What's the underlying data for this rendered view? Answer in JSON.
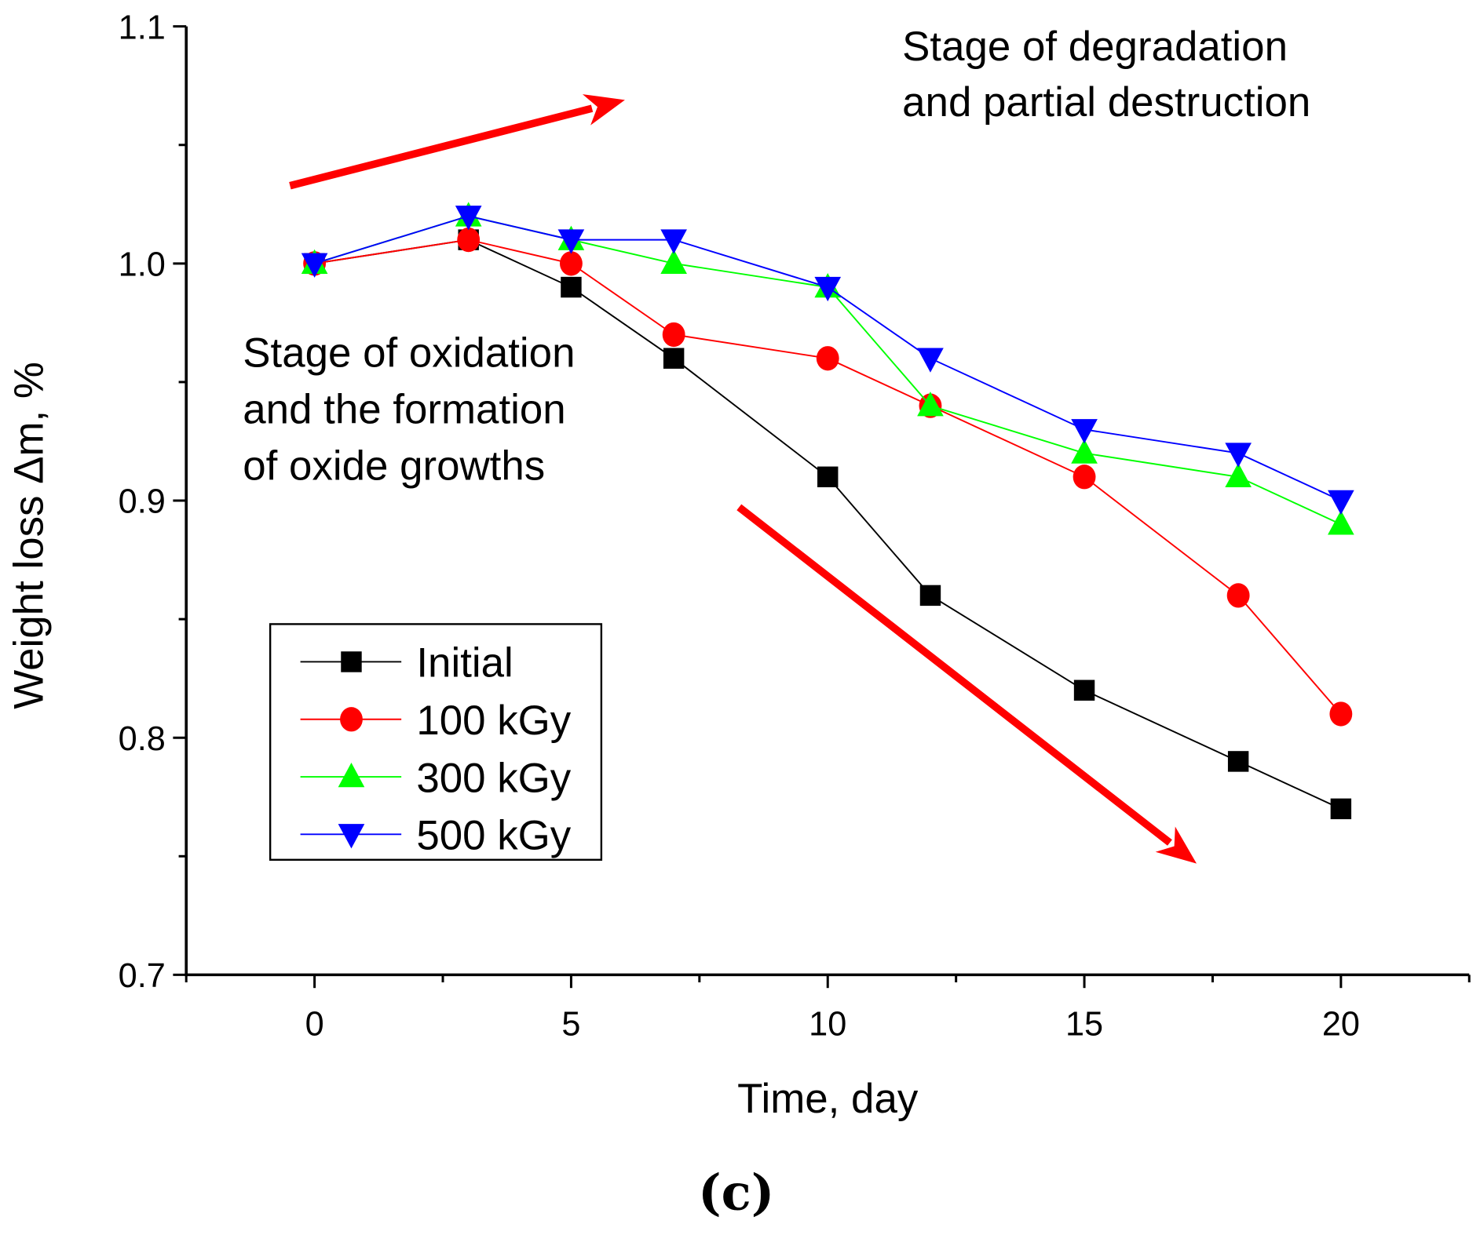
{
  "chart_data": {
    "type": "line",
    "xlabel": "Time, day",
    "ylabel": "Weight loss Δm, %",
    "xlim": [
      -2.5,
      22.5
    ],
    "ylim": [
      0.7,
      1.1
    ],
    "xticks": [
      0,
      5,
      10,
      15,
      20
    ],
    "xtick_labels": [
      "0",
      "5",
      "10",
      "15",
      "20"
    ],
    "yticks": [
      0.7,
      0.8,
      0.9,
      1.0,
      1.1
    ],
    "ytick_labels": [
      "0.7",
      "0.8",
      "0.9",
      "1.0",
      "1.1"
    ],
    "grid": false,
    "legend_position": "lower-left",
    "x": [
      0,
      3,
      5,
      7,
      10,
      12,
      15,
      18,
      20
    ],
    "series": [
      {
        "name": "Initial",
        "color": "#000000",
        "marker": "square",
        "values": [
          1.0,
          1.01,
          0.99,
          0.96,
          0.91,
          0.86,
          0.82,
          0.79,
          0.77
        ]
      },
      {
        "name": "100 kGy",
        "color": "#ff0000",
        "marker": "circle",
        "values": [
          1.0,
          1.01,
          1.0,
          0.97,
          0.96,
          0.94,
          0.91,
          0.86,
          0.81
        ]
      },
      {
        "name": "300 kGy",
        "color": "#00ff00",
        "marker": "triangle-up",
        "values": [
          1.0,
          1.02,
          1.01,
          1.0,
          0.99,
          0.94,
          0.92,
          0.91,
          0.89
        ]
      },
      {
        "name": "500 kGy",
        "color": "#0000ff",
        "marker": "triangle-down",
        "values": [
          1.0,
          1.02,
          1.01,
          1.01,
          0.99,
          0.96,
          0.93,
          0.92,
          0.9
        ]
      }
    ],
    "annotations": {
      "degradation": [
        "Stage of degradation",
        "and partial destruction"
      ],
      "oxidation": [
        "Stage of oxidation",
        "and the formation",
        "of oxide growths"
      ]
    },
    "arrow_color": "#ff0000"
  },
  "caption": "(c)"
}
